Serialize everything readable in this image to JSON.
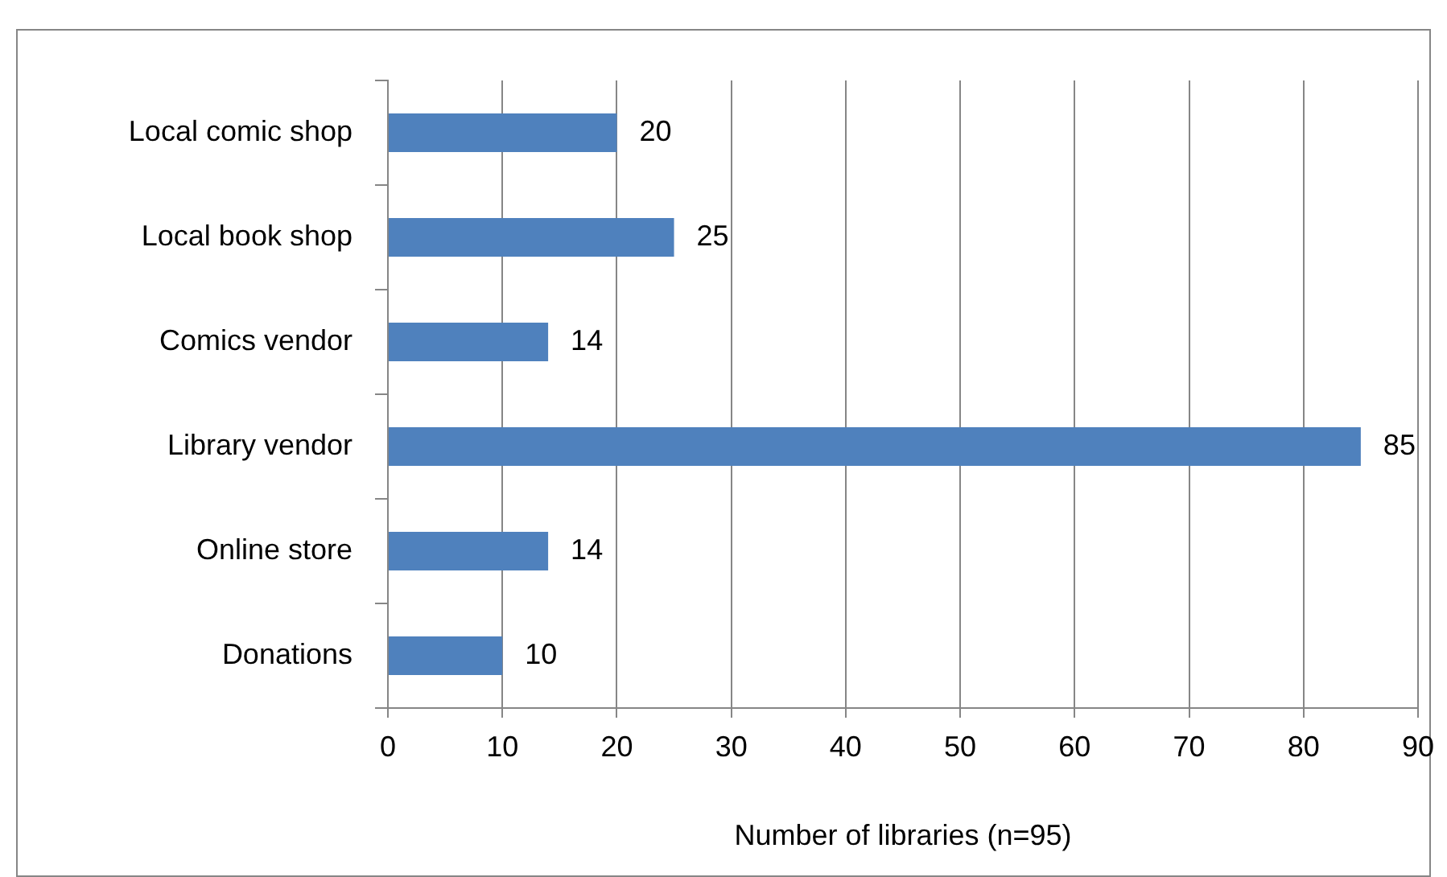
{
  "chart_data": {
    "type": "bar",
    "orientation": "horizontal",
    "xlabel": "Number of libraries (n=95)",
    "categories": [
      "Local comic shop",
      "Local book shop",
      "Comics vendor",
      "Library vendor",
      "Online store",
      "Donations"
    ],
    "values": [
      20,
      25,
      14,
      85,
      14,
      10
    ],
    "color": "#4f81bd",
    "xlim": [
      0,
      90
    ],
    "xticks": [
      0,
      10,
      20,
      30,
      40,
      50,
      60,
      70,
      80,
      90
    ],
    "grid": "x",
    "legend": false,
    "data_labels": true
  }
}
